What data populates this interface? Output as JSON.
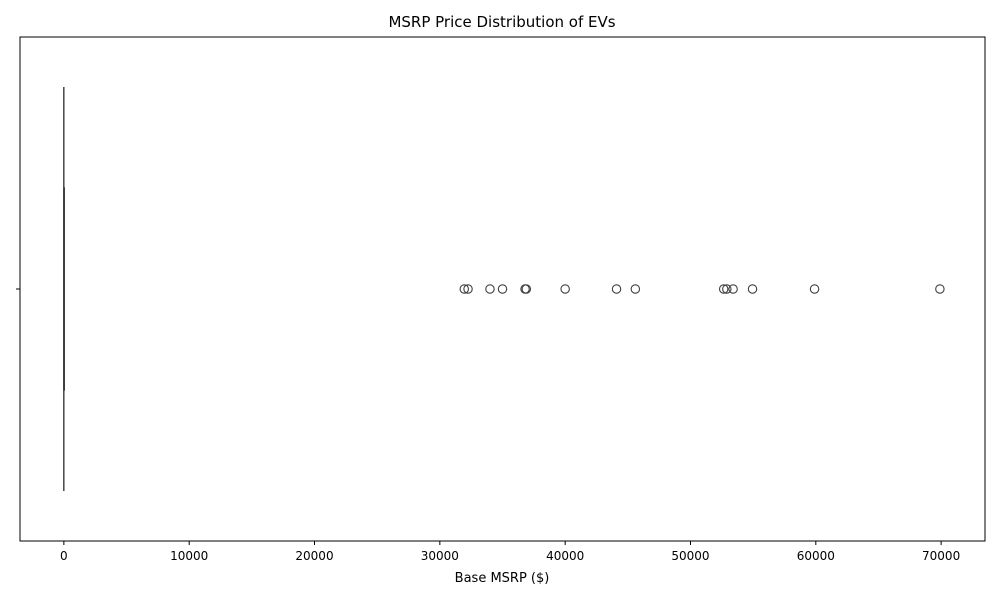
{
  "chart_data": {
    "type": "box",
    "orientation": "horizontal",
    "title": "MSRP Price Distribution of EVs",
    "xlabel": "Base MSRP ($)",
    "ylabel": "",
    "xlim": [
      -3500,
      73500
    ],
    "x_ticks": [
      0,
      10000,
      20000,
      30000,
      40000,
      50000,
      60000,
      70000
    ],
    "x_tick_labels": [
      "0",
      "10000",
      "20000",
      "30000",
      "40000",
      "50000",
      "60000",
      "70000"
    ],
    "box": {
      "q1": 0,
      "median": 0,
      "q3": 0,
      "whisker_low": 0,
      "whisker_high": 0
    },
    "outliers": [
      31950,
      32250,
      34000,
      35000,
      36800,
      36900,
      40000,
      44100,
      45600,
      52650,
      52900,
      53400,
      54950,
      59900,
      69900
    ],
    "grid": false,
    "legend": "none",
    "colors": {
      "box_edge": "#3f3f3f",
      "outlier_edge": "#3f3f3f",
      "axis": "#000000"
    }
  }
}
